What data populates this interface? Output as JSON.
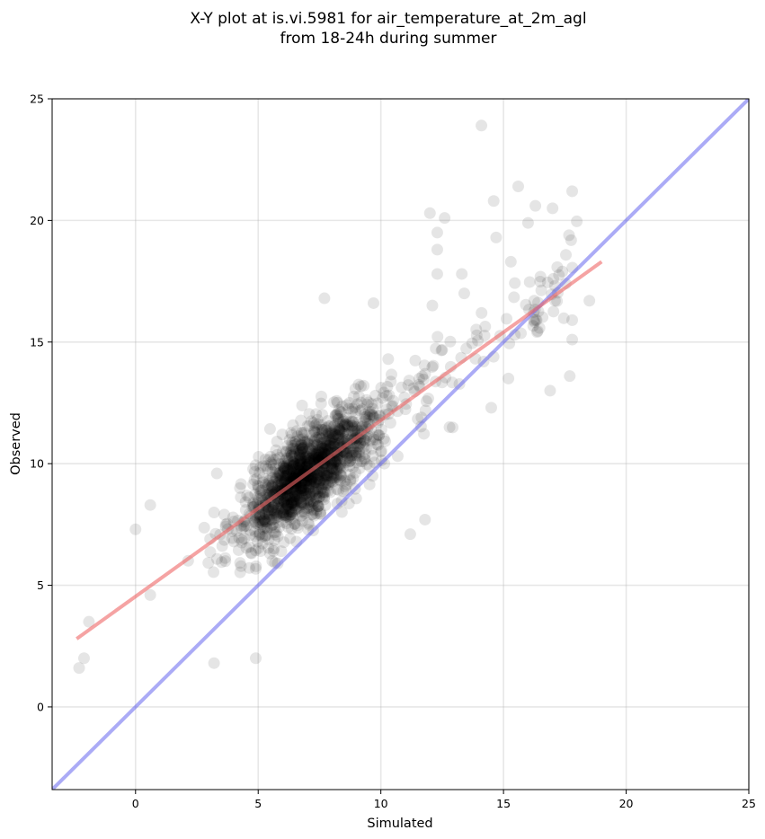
{
  "chart_data": {
    "type": "scatter",
    "title_lines": [
      "X-Y plot at is.vi.5981 for air_temperature_at_2m_agl",
      "from 18-24h during summer"
    ],
    "xlabel": "Simulated",
    "ylabel": "Observed",
    "xlim": [
      -3.4,
      25
    ],
    "ylim": [
      -3.4,
      25
    ],
    "xticks": [
      0,
      5,
      10,
      15,
      20,
      25
    ],
    "yticks": [
      0,
      5,
      10,
      15,
      20,
      25
    ],
    "grid": true,
    "point_color": "#000000",
    "point_alpha": 0.1,
    "reference_line": {
      "x": [
        -3.4,
        25
      ],
      "y": [
        -3.4,
        25
      ],
      "color": "#6666ee"
    },
    "regression_line": {
      "x": [
        -2.4,
        19.0
      ],
      "y": [
        2.8,
        18.3
      ],
      "color": "#ee6666"
    },
    "highlight_points": {
      "x": [
        14.1,
        15.6,
        17.8,
        14.6,
        16.3,
        17.0,
        12.0,
        12.6,
        12.3,
        12.3,
        14.7,
        16.0,
        15.3,
        12.3,
        17.4,
        17.1,
        18.5,
        17.8,
        17.7,
        13.3,
        12.1,
        13.4,
        16.9,
        17.8,
        15.2,
        14.5,
        7.7,
        4.9,
        3.2,
        0.6,
        -2.3,
        -2.1,
        -1.9,
        0.0,
        0.6,
        11.2,
        11.8,
        12.8,
        9.7,
        10.3
      ],
      "y": [
        23.9,
        21.4,
        21.2,
        20.8,
        20.6,
        20.5,
        20.3,
        20.1,
        19.5,
        18.8,
        19.3,
        19.9,
        18.3,
        17.8,
        17.9,
        16.7,
        16.7,
        15.1,
        13.6,
        17.8,
        16.5,
        17.0,
        13.0,
        15.9,
        13.5,
        12.3,
        16.8,
        2.0,
        1.8,
        8.3,
        1.6,
        2.0,
        3.5,
        7.3,
        4.6,
        7.1,
        7.7,
        11.5,
        16.6,
        14.3
      ]
    }
  }
}
